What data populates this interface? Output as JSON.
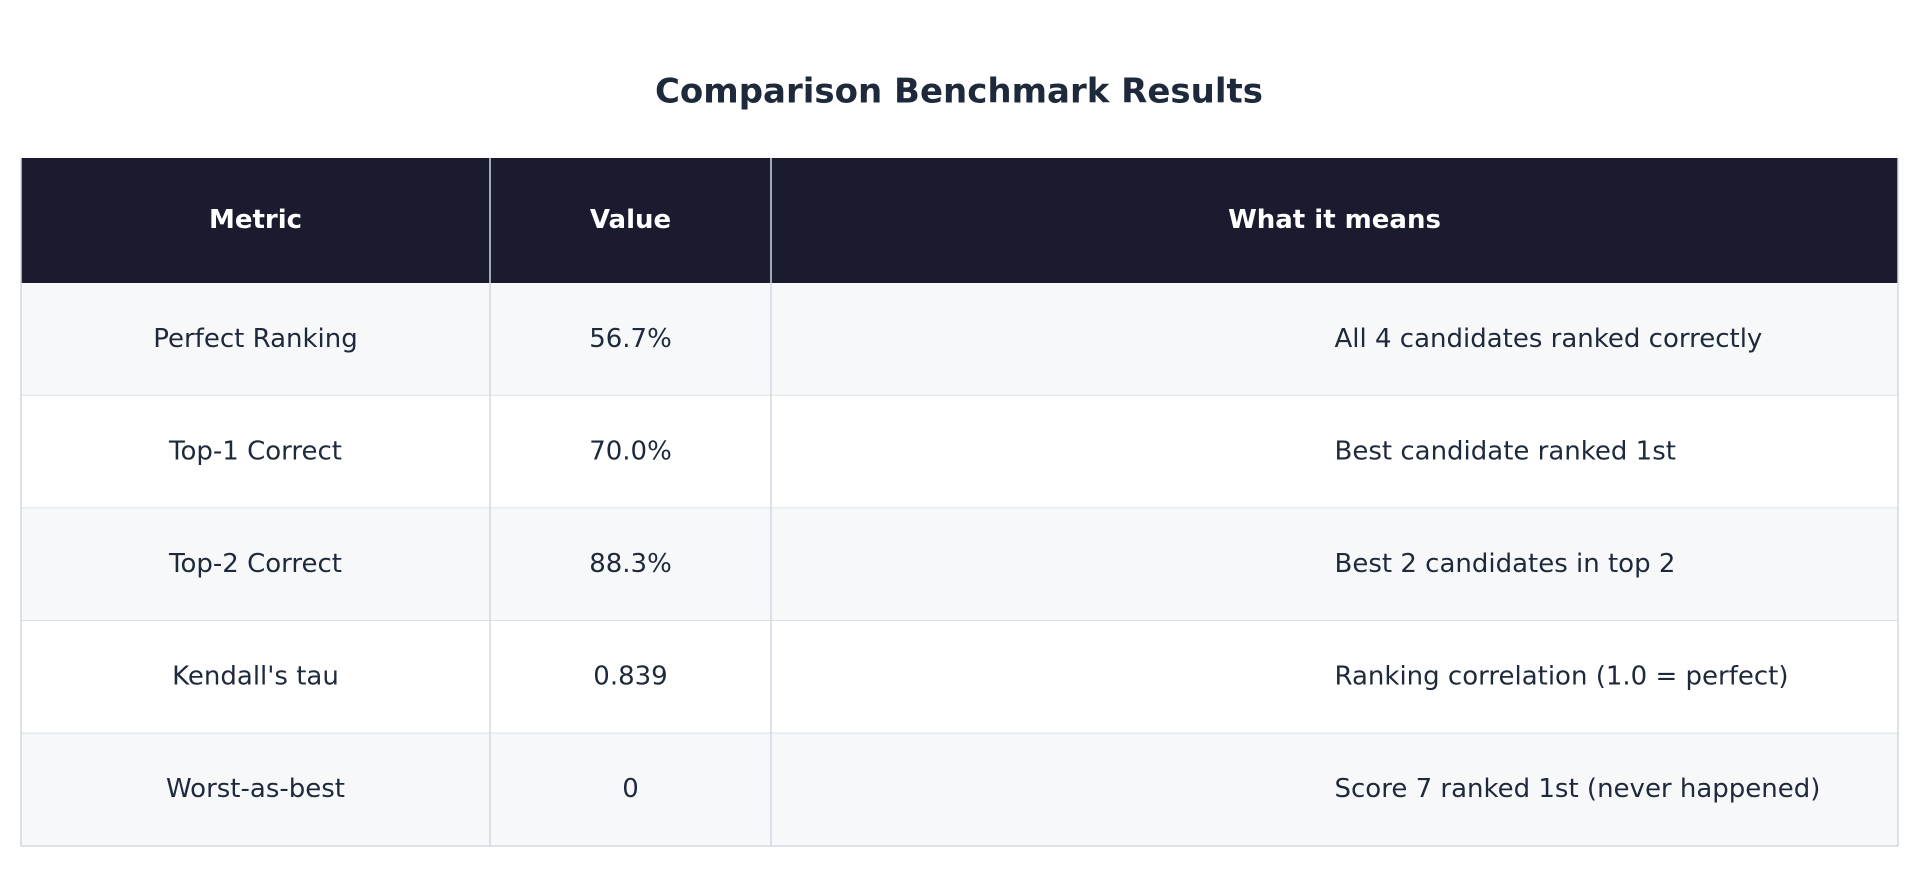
{
  "title": "Comparison Benchmark Results",
  "table": {
    "header": [
      "Metric",
      "Value",
      "What it means"
    ],
    "rows": [
      [
        "Perfect Ranking",
        "56.7%",
        "All 4 candidates ranked correctly"
      ],
      [
        "Top-1 Correct",
        "70.0%",
        "Best candidate ranked 1st"
      ],
      [
        "Top-2 Correct",
        "88.3%",
        "Best 2 candidates in top 2"
      ],
      [
        "Kendall's tau",
        "0.839",
        "Ranking correlation (1.0 = perfect)"
      ],
      [
        "Worst-as-best",
        "0",
        "Score 7 ranked 1st (never happened)"
      ]
    ]
  }
}
